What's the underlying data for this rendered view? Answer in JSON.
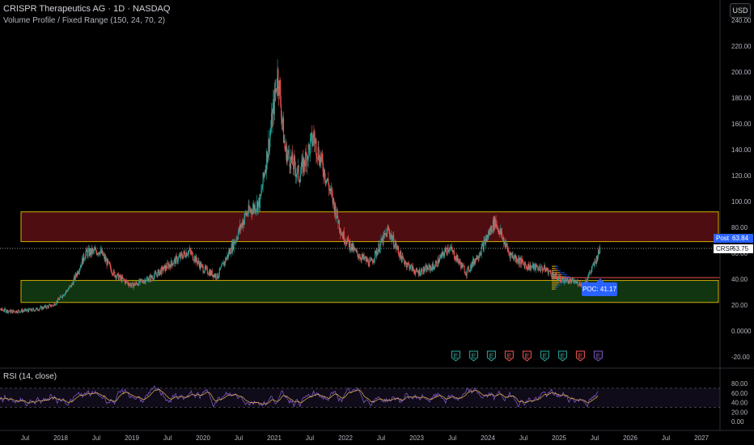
{
  "header": {
    "title": "CRISPR Therapeutics AG · 1D · NASDAQ",
    "subtitle": "Volume Profile / Fixed Range (150, 24, 70, 2)",
    "currency": "USD"
  },
  "rsi": {
    "label": "RSI (14, close)"
  },
  "price_tags": {
    "post_label": "Post",
    "post_value": "63.84",
    "symbol_label": "CRSP",
    "last_value": "63.75",
    "poc_label": "POC: 41.17"
  },
  "colors": {
    "candle_up": "#26a69a",
    "candle_down": "#ef5350",
    "resistance_fill": "#5c0f14",
    "support_fill": "#143d14",
    "zone_border": "#d4b000",
    "rsi_line": "#7e57c2",
    "rsi_ma": "#e8b84a",
    "poc_line": "#ef5350",
    "accent": "#2962ff"
  },
  "chart_data": [
    {
      "type": "candlestick",
      "title": "CRISPR Therapeutics AG · 1D · NASDAQ",
      "x_ticks": [
        "Jul",
        "2018",
        "Jul",
        "2019",
        "Jul",
        "2020",
        "Jul",
        "2021",
        "Jul",
        "2022",
        "Jul",
        "2023",
        "Jul",
        "2024",
        "Jul",
        "2025",
        "Jul",
        "2026",
        "Jul",
        "2027"
      ],
      "y_ticks": [
        "240.00",
        "220.00",
        "200.00",
        "180.00",
        "160.00",
        "140.00",
        "120.00",
        "100.00",
        "80.00",
        "60.00",
        "40.00",
        "20.00",
        "0.0000",
        "-20.00"
      ],
      "ylim": [
        -20,
        240
      ],
      "grid": false,
      "series": [
        {
          "values": [
            {
              "t": 2017.0,
              "v": 18
            },
            {
              "t": 2017.3,
              "v": 15
            },
            {
              "t": 2017.6,
              "v": 16
            },
            {
              "t": 2017.9,
              "v": 20
            },
            {
              "t": 2018.15,
              "v": 35
            },
            {
              "t": 2018.35,
              "v": 60
            },
            {
              "t": 2018.55,
              "v": 62
            },
            {
              "t": 2018.75,
              "v": 44
            },
            {
              "t": 2019.0,
              "v": 35
            },
            {
              "t": 2019.3,
              "v": 42
            },
            {
              "t": 2019.55,
              "v": 52
            },
            {
              "t": 2019.8,
              "v": 62
            },
            {
              "t": 2020.0,
              "v": 48
            },
            {
              "t": 2020.2,
              "v": 42
            },
            {
              "t": 2020.45,
              "v": 70
            },
            {
              "t": 2020.6,
              "v": 90
            },
            {
              "t": 2020.8,
              "v": 100
            },
            {
              "t": 2020.95,
              "v": 155
            },
            {
              "t": 2021.05,
              "v": 200
            },
            {
              "t": 2021.15,
              "v": 140
            },
            {
              "t": 2021.35,
              "v": 120
            },
            {
              "t": 2021.55,
              "v": 150
            },
            {
              "t": 2021.75,
              "v": 115
            },
            {
              "t": 2021.95,
              "v": 75
            },
            {
              "t": 2022.15,
              "v": 60
            },
            {
              "t": 2022.35,
              "v": 52
            },
            {
              "t": 2022.6,
              "v": 78
            },
            {
              "t": 2022.8,
              "v": 55
            },
            {
              "t": 2023.0,
              "v": 45
            },
            {
              "t": 2023.25,
              "v": 50
            },
            {
              "t": 2023.45,
              "v": 65
            },
            {
              "t": 2023.7,
              "v": 45
            },
            {
              "t": 2023.9,
              "v": 62
            },
            {
              "t": 2024.1,
              "v": 85
            },
            {
              "t": 2024.3,
              "v": 60
            },
            {
              "t": 2024.55,
              "v": 50
            },
            {
              "t": 2024.8,
              "v": 48
            },
            {
              "t": 2025.0,
              "v": 40
            },
            {
              "t": 2025.2,
              "v": 38
            },
            {
              "t": 2025.35,
              "v": 36
            },
            {
              "t": 2025.5,
              "v": 52
            },
            {
              "t": 2025.58,
              "v": 64
            }
          ]
        }
      ],
      "zones": [
        {
          "name": "resistance",
          "low": 69,
          "high": 92
        },
        {
          "name": "support",
          "low": 22,
          "high": 39
        }
      ],
      "poc": 41.17,
      "last_price": 63.75,
      "post_price": 63.84,
      "earnings_markers": [
        {
          "t": 2023.55,
          "color": "#26a69a"
        },
        {
          "t": 2023.8,
          "color": "#26a69a"
        },
        {
          "t": 2024.05,
          "color": "#26a69a"
        },
        {
          "t": 2024.3,
          "color": "#ef5350"
        },
        {
          "t": 2024.55,
          "color": "#ef5350"
        },
        {
          "t": 2024.8,
          "color": "#26a69a"
        },
        {
          "t": 2025.05,
          "color": "#26a69a"
        },
        {
          "t": 2025.3,
          "color": "#ef5350"
        },
        {
          "t": 2025.55,
          "color": "#7e57c2"
        }
      ]
    },
    {
      "type": "line",
      "title": "RSI (14, close)",
      "y_ticks": [
        "80.00",
        "60.00",
        "40.00",
        "20.00",
        "0.00"
      ],
      "ylim": [
        0,
        100
      ],
      "bands": [
        30,
        70
      ],
      "grid": false
    }
  ]
}
